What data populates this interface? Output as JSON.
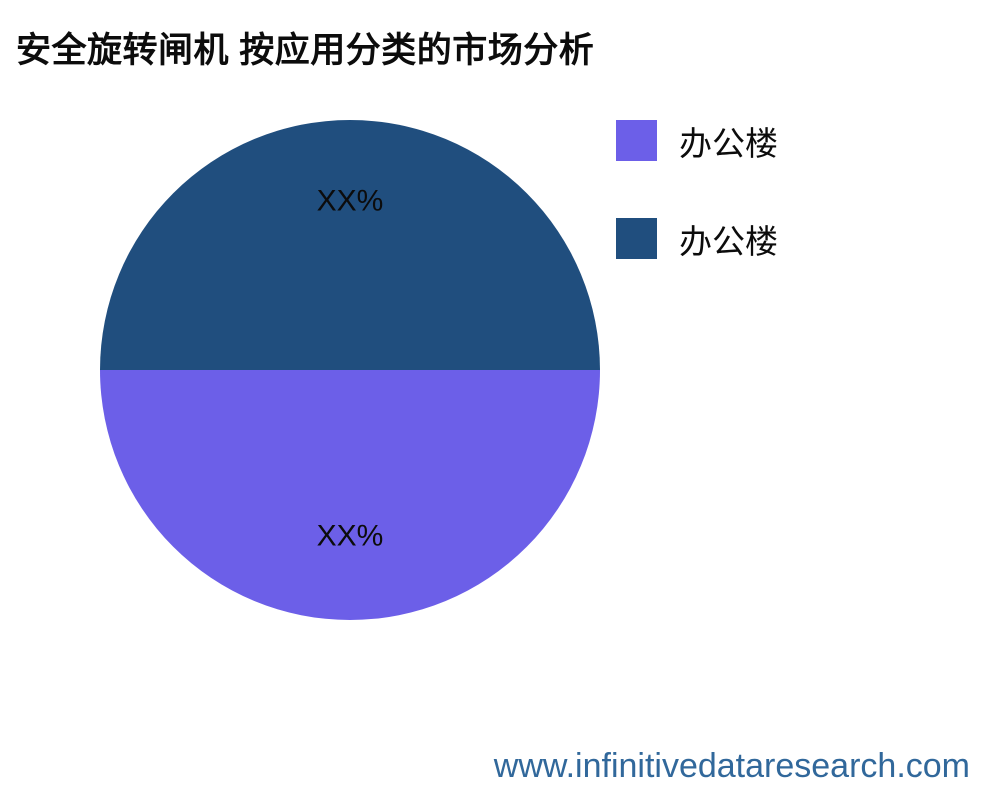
{
  "title": "安全旋转闸机 按应用分类的市场分析",
  "footer": {
    "url": "www.infinitivedataresearch.com",
    "color": "#31689b"
  },
  "chart_data": {
    "type": "pie",
    "title": "安全旋转闸机 按应用分类的市场分析",
    "legend_position": "right",
    "slices": [
      {
        "label": "办公楼",
        "value": 50,
        "display": "XX%",
        "color": "#6c5fe8"
      },
      {
        "label": "办公楼",
        "value": 50,
        "display": "XX%",
        "color": "#204e7e"
      }
    ],
    "label_text_color": "#0c0c0c",
    "start_angle_deg": 0,
    "direction": "clockwise"
  }
}
